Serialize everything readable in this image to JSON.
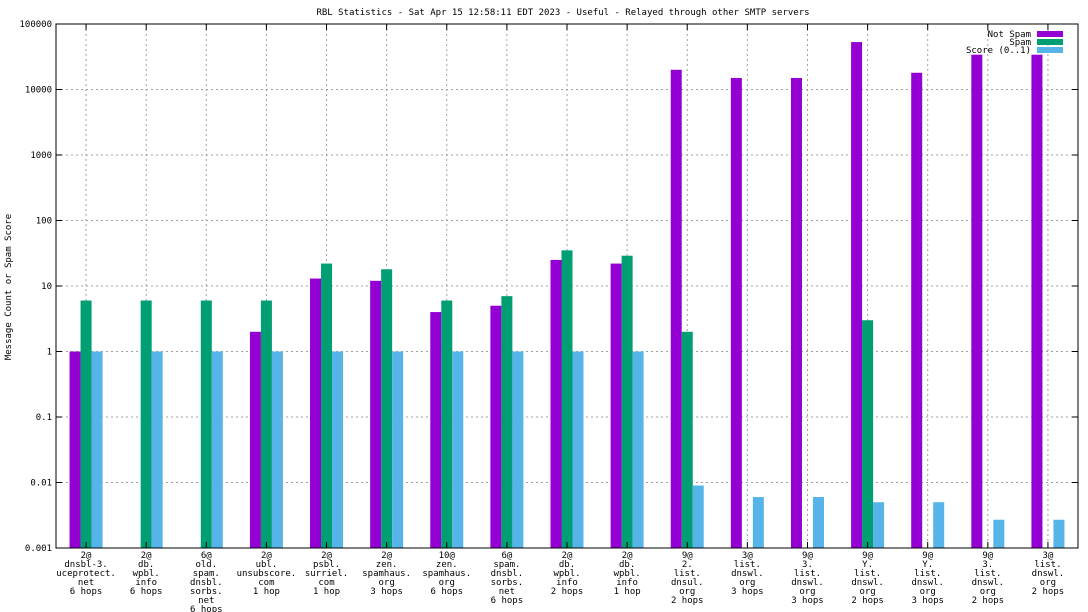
{
  "chart_data": {
    "type": "bar",
    "title": "RBL Statistics - Sat Apr 15 12:58:11 EDT 2023 - Useful - Relayed through other SMTP servers",
    "ylabel": "Message Count or Spam Score",
    "yscale": "log",
    "ylim": [
      0.001,
      100000
    ],
    "yticks": [
      "0.001",
      "0.01",
      "0.1",
      "1",
      "10",
      "100",
      "1000",
      "10000",
      "100000"
    ],
    "grid": true,
    "legend_position": "top-right",
    "categories": [
      [
        "2@",
        "dnsbl-3.",
        "uceprotect.",
        "net",
        "6 hops"
      ],
      [
        "2@",
        "db.",
        "wpbl.",
        "info",
        "6 hops"
      ],
      [
        "6@",
        "old.",
        "spam.",
        "dnsbl.",
        "sorbs.",
        "net",
        "6 hops"
      ],
      [
        "2@",
        "ubl.",
        "unsubscore.",
        "com",
        "1 hop"
      ],
      [
        "2@",
        "psbl.",
        "surriel.",
        "com",
        "1 hop"
      ],
      [
        "2@",
        "zen.",
        "spamhaus.",
        "org",
        "3 hops"
      ],
      [
        "10@",
        "zen.",
        "spamhaus.",
        "org",
        "6 hops"
      ],
      [
        "6@",
        "spam.",
        "dnsbl.",
        "sorbs.",
        "net",
        "6 hops"
      ],
      [
        "2@",
        "db.",
        "wpbl.",
        "info",
        "2 hops"
      ],
      [
        "2@",
        "db.",
        "wpbl.",
        "info",
        "1 hop"
      ],
      [
        "9@",
        "2.",
        "list.",
        "dnsul.",
        "org",
        "2 hops"
      ],
      [
        "3@",
        "list.",
        "dnswl.",
        "org",
        "3 hops"
      ],
      [
        "9@",
        "3.",
        "list.",
        "dnswl.",
        "org",
        "3 hops"
      ],
      [
        "9@",
        "Y.",
        "list.",
        "dnswl.",
        "org",
        "2 hops"
      ],
      [
        "9@",
        "Y.",
        "list.",
        "dnswl.",
        "org",
        "3 hops"
      ],
      [
        "9@",
        "3.",
        "list.",
        "dnswl.",
        "org",
        "2 hops"
      ],
      [
        "3@",
        "list.",
        "dnswl.",
        "org",
        "2 hops"
      ]
    ],
    "series": [
      {
        "name": "Not Spam",
        "color": "#9400d3",
        "values": [
          1,
          null,
          null,
          2,
          13,
          12,
          4,
          5,
          25,
          22,
          20000,
          15000,
          15000,
          53000,
          18000,
          34000,
          34000
        ]
      },
      {
        "name": "Spam",
        "color": "#009e73",
        "values": [
          6,
          6,
          6,
          6,
          22,
          18,
          6,
          7,
          35,
          29,
          2,
          null,
          null,
          3,
          null,
          null,
          null
        ]
      },
      {
        "name": "Score (0..1)",
        "color": "#56b4e9",
        "values": [
          1,
          1,
          1,
          1,
          1,
          1,
          1,
          1,
          1,
          1,
          0.009,
          0.006,
          0.006,
          0.005,
          0.005,
          0.0027,
          0.0027
        ]
      }
    ]
  }
}
